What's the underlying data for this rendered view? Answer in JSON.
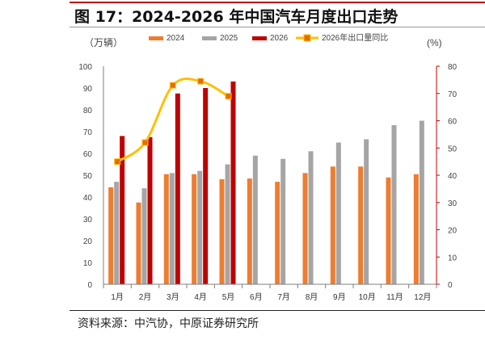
{
  "header": {
    "title": "图 17：2024-2026 年中国汽车月度出口走势"
  },
  "footer": {
    "source": "资料来源：中汽协，中原证券研究所"
  },
  "colors": {
    "s2024": "#ed7d31",
    "s2025": "#a5a5a5",
    "s2026": "#c00000",
    "yoy_line": "#ffc000",
    "yoy_marker": "#e46c0a",
    "right_axis": "#c00000",
    "accent_rule": "#c00000"
  },
  "chart_data": {
    "type": "bar",
    "categories": [
      "1月",
      "2月",
      "3月",
      "4月",
      "5月",
      "6月",
      "7月",
      "8月",
      "9月",
      "10月",
      "11月",
      "12月"
    ],
    "left_unit": "（万辆）",
    "right_unit": "(%)",
    "ylim": [
      0,
      100
    ],
    "ylim_right": [
      0,
      80
    ],
    "yticks": [
      0,
      10,
      20,
      30,
      40,
      50,
      60,
      70,
      80,
      90,
      100
    ],
    "yticks_right": [
      0,
      10,
      20,
      30,
      40,
      50,
      60,
      70,
      80
    ],
    "grid": false,
    "legend_position": "top",
    "series": [
      {
        "name": "2024",
        "type": "bar",
        "axis": "left",
        "values": [
          44.5,
          37.5,
          50.5,
          50.5,
          48.2,
          48.5,
          47,
          51,
          54,
          54,
          49,
          50.5
        ]
      },
      {
        "name": "2025",
        "type": "bar",
        "axis": "left",
        "values": [
          47,
          44,
          51,
          52,
          55,
          59,
          57.5,
          61,
          65,
          66.5,
          73,
          75
        ]
      },
      {
        "name": "2026",
        "type": "bar",
        "axis": "left",
        "values": [
          68,
          67.5,
          87.5,
          90,
          93,
          null,
          null,
          null,
          null,
          null,
          null,
          null
        ]
      },
      {
        "name": "2026年出口量同比",
        "type": "line",
        "axis": "right",
        "values": [
          45,
          52,
          73,
          74.5,
          69,
          null,
          null,
          null,
          null,
          null,
          null,
          null
        ]
      }
    ]
  }
}
